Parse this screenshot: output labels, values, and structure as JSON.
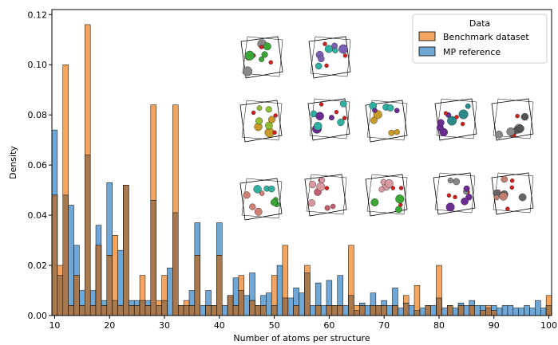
{
  "chart_data": {
    "type": "bar",
    "xlabel": "Number of atoms per structure",
    "ylabel": "Density",
    "xlim": [
      9.5,
      100.5
    ],
    "ylim": [
      0,
      0.122
    ],
    "xticks": [
      10,
      20,
      30,
      40,
      50,
      60,
      70,
      80,
      90,
      100
    ],
    "yticks": [
      0.0,
      0.02,
      0.04,
      0.06,
      0.08,
      0.1,
      0.12
    ],
    "ytick_labels": [
      "0.00",
      "0.02",
      "0.04",
      "0.06",
      "0.08",
      "0.10",
      "0.12"
    ],
    "grid": false,
    "legend": {
      "title": "Data",
      "position": "top-right"
    },
    "bin_width": 1,
    "x": [
      10,
      11,
      12,
      13,
      14,
      15,
      16,
      17,
      18,
      19,
      20,
      21,
      22,
      23,
      24,
      25,
      26,
      27,
      28,
      29,
      30,
      31,
      32,
      33,
      34,
      35,
      36,
      37,
      38,
      39,
      40,
      41,
      42,
      43,
      44,
      45,
      46,
      47,
      48,
      49,
      50,
      51,
      52,
      53,
      54,
      55,
      56,
      57,
      58,
      59,
      60,
      61,
      62,
      63,
      64,
      65,
      66,
      67,
      68,
      69,
      70,
      71,
      72,
      73,
      74,
      75,
      76,
      77,
      78,
      79,
      80,
      81,
      82,
      83,
      84,
      85,
      86,
      87,
      88,
      89,
      90,
      91,
      92,
      93,
      94,
      95,
      96,
      97,
      98,
      99,
      100
    ],
    "series": [
      {
        "name": "Benchmark dataset",
        "color": "#f5a55f",
        "values": [
          0.048,
          0.02,
          0.1,
          0.004,
          0.016,
          0.004,
          0.116,
          0.004,
          0.028,
          0.004,
          0.024,
          0.032,
          0.004,
          0.052,
          0.004,
          0.004,
          0.016,
          0.004,
          0.084,
          0.006,
          0.016,
          0.0,
          0.084,
          0.004,
          0.006,
          0.004,
          0.024,
          0.0,
          0.004,
          0.004,
          0.024,
          0.0,
          0.008,
          0.004,
          0.016,
          0.0,
          0.006,
          0.004,
          0.004,
          0.0,
          0.016,
          0.0,
          0.028,
          0.0,
          0.004,
          0.0,
          0.02,
          0.0,
          0.004,
          0.0,
          0.004,
          0.004,
          0.004,
          0.0,
          0.028,
          0.004,
          0.004,
          0.0,
          0.004,
          0.004,
          0.004,
          0.0,
          0.004,
          0.0,
          0.008,
          0.0,
          0.012,
          0.0,
          0.004,
          0.0,
          0.02,
          0.0,
          0.004,
          0.0,
          0.004,
          0.0,
          0.004,
          0.0,
          0.002,
          0.004,
          0.002,
          0.0,
          0.0,
          0.0,
          0.0,
          0.0,
          0.0,
          0.0,
          0.0,
          0.0,
          0.008
        ]
      },
      {
        "name": "MP reference",
        "color": "#6fa8d6",
        "values": [
          0.074,
          0.016,
          0.048,
          0.044,
          0.028,
          0.01,
          0.064,
          0.01,
          0.036,
          0.006,
          0.053,
          0.006,
          0.026,
          0.052,
          0.006,
          0.006,
          0.006,
          0.006,
          0.046,
          0.004,
          0.006,
          0.019,
          0.041,
          0.004,
          0.004,
          0.01,
          0.037,
          0.004,
          0.01,
          0.004,
          0.037,
          0.004,
          0.008,
          0.015,
          0.01,
          0.008,
          0.017,
          0.004,
          0.008,
          0.009,
          0.004,
          0.02,
          0.007,
          0.007,
          0.011,
          0.009,
          0.017,
          0.004,
          0.013,
          0.004,
          0.014,
          0.004,
          0.016,
          0.004,
          0.008,
          0.002,
          0.005,
          0.004,
          0.009,
          0.004,
          0.006,
          0.004,
          0.011,
          0.003,
          0.005,
          0.004,
          0.002,
          0.003,
          0.004,
          0.004,
          0.007,
          0.003,
          0.004,
          0.003,
          0.005,
          0.004,
          0.006,
          0.004,
          0.004,
          0.003,
          0.004,
          0.003,
          0.004,
          0.004,
          0.003,
          0.003,
          0.004,
          0.003,
          0.006,
          0.003,
          0.004
        ]
      }
    ]
  }
}
